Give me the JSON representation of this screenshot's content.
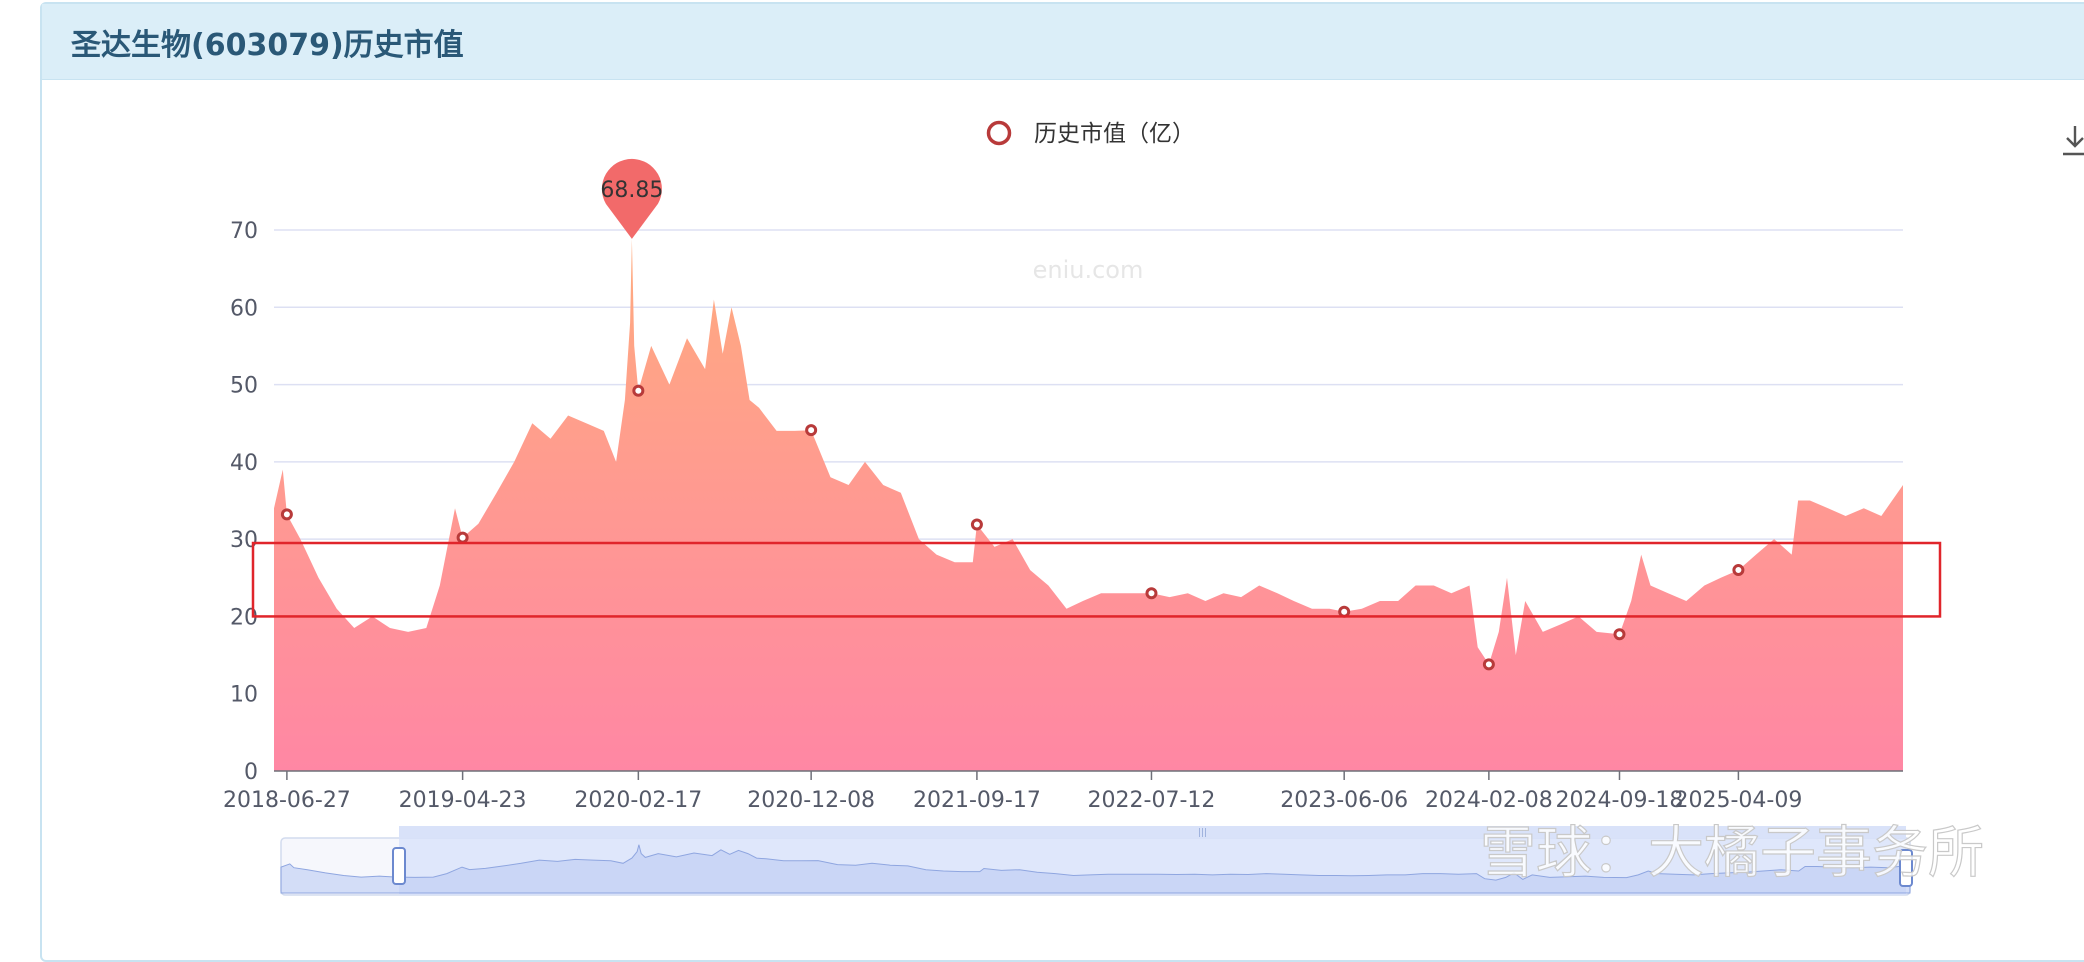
{
  "panel": {
    "title": "圣达生物(603079)历史市值"
  },
  "toolbar": {
    "download_icon": "download-icon"
  },
  "watermark": "eniu.com",
  "brand_watermark": "雪球：大橘子事务所",
  "chart_data": {
    "type": "area",
    "title": "圣达生物(603079)历史市值",
    "legend": {
      "entries": [
        "历史市值（亿）"
      ],
      "placement": "top-center"
    },
    "series": [
      {
        "name": "历史市值（亿）",
        "x": [
          "2018-06-05",
          "2018-06-20",
          "2018-06-27",
          "2018-07-20",
          "2018-08-20",
          "2018-09-20",
          "2018-10-20",
          "2018-11-20",
          "2018-12-20",
          "2019-01-20",
          "2019-02-20",
          "2019-03-15",
          "2019-04-10",
          "2019-04-23",
          "2019-05-20",
          "2019-06-20",
          "2019-07-20",
          "2019-08-20",
          "2019-09-20",
          "2019-10-20",
          "2019-11-20",
          "2019-12-20",
          "2020-01-10",
          "2020-01-25",
          "2020-02-03",
          "2020-02-06",
          "2020-02-10",
          "2020-02-17",
          "2020-03-10",
          "2020-04-10",
          "2020-05-10",
          "2020-06-10",
          "2020-06-25",
          "2020-07-10",
          "2020-07-25",
          "2020-08-10",
          "2020-08-25",
          "2020-09-10",
          "2020-10-10",
          "2020-11-10",
          "2020-12-08",
          "2021-01-10",
          "2021-02-10",
          "2021-03-10",
          "2021-04-10",
          "2021-05-10",
          "2021-06-10",
          "2021-07-10",
          "2021-08-10",
          "2021-09-10",
          "2021-09-17",
          "2021-10-17",
          "2021-11-17",
          "2021-12-17",
          "2022-01-17",
          "2022-02-17",
          "2022-03-17",
          "2022-04-17",
          "2022-05-17",
          "2022-06-17",
          "2022-07-12",
          "2022-08-12",
          "2022-09-12",
          "2022-10-12",
          "2022-11-12",
          "2022-12-12",
          "2023-01-12",
          "2023-02-12",
          "2023-03-12",
          "2023-04-12",
          "2023-05-12",
          "2023-06-06",
          "2023-07-06",
          "2023-08-06",
          "2023-09-06",
          "2023-10-06",
          "2023-11-06",
          "2023-12-06",
          "2024-01-06",
          "2024-01-20",
          "2024-02-08",
          "2024-02-25",
          "2024-03-10",
          "2024-03-25",
          "2024-04-10",
          "2024-05-10",
          "2024-06-10",
          "2024-07-10",
          "2024-08-10",
          "2024-09-18",
          "2024-10-08",
          "2024-10-25",
          "2024-11-10",
          "2024-12-10",
          "2025-01-10",
          "2025-02-10",
          "2025-03-10",
          "2025-04-09",
          "2025-05-09",
          "2025-06-09",
          "2025-07-09",
          "2025-07-20",
          "2025-08-09",
          "2025-09-09",
          "2025-10-09",
          "2025-11-09",
          "2025-12-09",
          "2026-01-15"
        ],
        "values": [
          34,
          39,
          33.2,
          30,
          25,
          21,
          18.5,
          20,
          18.5,
          18,
          18.5,
          24,
          34,
          30.2,
          32,
          36,
          40,
          45,
          43,
          46,
          45,
          44,
          40,
          48,
          58,
          68.85,
          55,
          49.2,
          55,
          50,
          56,
          52,
          61,
          54,
          60,
          55,
          48,
          47,
          44,
          44,
          44.1,
          38,
          37,
          40,
          37,
          36,
          30,
          28,
          27,
          27,
          31.9,
          29,
          30,
          26,
          24,
          21,
          22,
          23,
          23,
          23,
          23,
          22.5,
          23,
          22,
          23,
          22.5,
          24,
          23,
          22,
          21,
          21,
          20.6,
          21,
          22,
          22,
          24,
          24,
          23,
          24,
          16,
          13.8,
          18,
          25,
          15,
          22,
          18,
          19,
          20,
          18,
          17.7,
          22,
          28,
          24,
          23,
          22,
          24,
          25,
          26,
          28,
          30,
          28,
          35,
          35,
          34,
          33,
          34,
          33,
          37
        ]
      }
    ],
    "markers": [
      {
        "x": "2018-06-27",
        "value": 33.2
      },
      {
        "x": "2019-04-23",
        "value": 30.2
      },
      {
        "x": "2020-02-17",
        "value": 49.2
      },
      {
        "x": "2020-12-08",
        "value": 44.1
      },
      {
        "x": "2021-09-17",
        "value": 31.9
      },
      {
        "x": "2022-07-12",
        "value": 23
      },
      {
        "x": "2023-06-06",
        "value": 20.6
      },
      {
        "x": "2024-02-08",
        "value": 13.8
      },
      {
        "x": "2024-09-18",
        "value": 17.7
      },
      {
        "x": "2025-04-09",
        "value": 26
      }
    ],
    "max_point": {
      "x": "2020-02-06",
      "value": 68.85,
      "label": "68.85"
    },
    "x_ticks": [
      "2018-06-27",
      "2019-04-23",
      "2020-02-17",
      "2020-12-08",
      "2021-09-17",
      "2022-07-12",
      "2023-06-06",
      "2024-02-08",
      "2024-09-18",
      "2025-04-09"
    ],
    "y_ticks": [
      0,
      10,
      20,
      30,
      40,
      50,
      60,
      70
    ],
    "xlim": [
      "2018-06-05",
      "2026-01-15"
    ],
    "ylim": [
      0,
      70
    ],
    "grid": true,
    "highlight_band": {
      "y_range": [
        20,
        29.5
      ],
      "color": "#e0252b"
    },
    "colors": {
      "fill_top": "#ffab7f",
      "fill_bottom": "#ff87a4",
      "marker": "#b83a3a",
      "max_pin": "#f26a6a",
      "grid": "#dde0f3",
      "axis_text": "#545968",
      "slider": "#d6e0fb"
    }
  }
}
